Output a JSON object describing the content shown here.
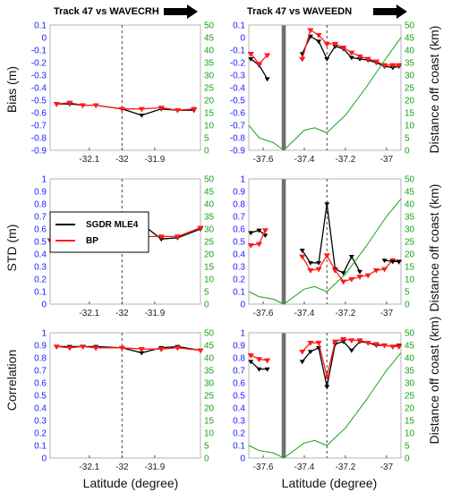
{
  "titles": {
    "left": "Track 47 vs WAVECRH",
    "right": "Track 47 vs WAVEEDN"
  },
  "xlabel": "Latitude (degree)",
  "legend": {
    "entries": [
      {
        "label": "SGDR MLE4",
        "color": "#000000"
      },
      {
        "label": "BP",
        "color": "#ff1a1a"
      }
    ],
    "placement": "top-left of middle-left panel"
  },
  "colors": {
    "sgdr": "#000000",
    "bp": "#ff1a1a",
    "distance": "#17a317",
    "left_axis": "#1a1aff",
    "gap_band": "#707070"
  },
  "chart_data": [
    {
      "type": "line",
      "panel": "bias-left",
      "ylabel": "Bias (m)",
      "xlim": [
        -32.22,
        -31.76
      ],
      "xticks": [
        "-32.1",
        "-32",
        "-31.9"
      ],
      "ylim": [
        -0.9,
        0.1
      ],
      "yticks": [
        "0.1",
        "0",
        "-0.1",
        "-0.2",
        "-0.3",
        "-0.4",
        "-0.5",
        "-0.6",
        "-0.7",
        "-0.8",
        "-0.9"
      ],
      "y2lim": [
        0,
        50
      ],
      "y2ticks": [
        "50",
        "45",
        "40",
        "35",
        "30",
        "25",
        "20",
        "15",
        "10",
        "5",
        "0"
      ],
      "vline": -32.0,
      "series": [
        {
          "name": "SGDR MLE4",
          "x": [
            -32.2,
            -32.16,
            -32.12,
            -32.08,
            -32.0,
            -31.94,
            -31.88,
            -31.83,
            -31.78
          ],
          "values": [
            -0.53,
            -0.53,
            -0.54,
            -0.54,
            -0.57,
            -0.62,
            -0.57,
            -0.58,
            -0.58
          ]
        },
        {
          "name": "BP",
          "x": [
            -32.2,
            -32.16,
            -32.12,
            -32.08,
            -32.0,
            -31.94,
            -31.88,
            -31.83,
            -31.78
          ],
          "values": [
            -0.53,
            -0.52,
            -0.54,
            -0.54,
            -0.57,
            -0.57,
            -0.56,
            -0.58,
            -0.57
          ]
        }
      ]
    },
    {
      "type": "line",
      "panel": "bias-right",
      "y2label": "Distance off coast (km)",
      "xlim": [
        -37.67,
        -36.93
      ],
      "xticks": [
        "-37.6",
        "-37.4",
        "-37.2",
        "-37"
      ],
      "ylim": [
        -0.9,
        0.1
      ],
      "yticks": [
        "0.1",
        "0",
        "-0.1",
        "-0.2",
        "-0.3",
        "-0.4",
        "-0.5",
        "-0.6",
        "-0.7",
        "-0.8",
        "-0.9"
      ],
      "y2lim": [
        0,
        50
      ],
      "y2ticks": [
        "50",
        "45",
        "40",
        "35",
        "30",
        "25",
        "20",
        "15",
        "10",
        "5",
        "0"
      ],
      "vline": -37.29,
      "gap": [
        -37.51,
        -37.49
      ],
      "series": [
        {
          "name": "SGDR MLE4",
          "x": [
            -37.66,
            -37.62,
            -37.58
          ],
          "values": [
            -0.17,
            -0.22,
            -0.33
          ]
        },
        {
          "name": "SGDR MLE4",
          "x": [
            -37.41,
            -37.37,
            -37.33,
            -37.29,
            -37.25,
            -37.21,
            -37.17,
            -37.13,
            -37.09,
            -37.05,
            -37.01,
            -36.97,
            -36.94
          ],
          "values": [
            -0.13,
            0.01,
            -0.03,
            -0.17,
            -0.07,
            -0.09,
            -0.16,
            -0.17,
            -0.18,
            -0.2,
            -0.23,
            -0.24,
            -0.23
          ]
        },
        {
          "name": "BP",
          "x": [
            -37.66,
            -37.62,
            -37.58
          ],
          "values": [
            -0.13,
            -0.21,
            -0.14
          ]
        },
        {
          "name": "BP",
          "x": [
            -37.41,
            -37.37,
            -37.33,
            -37.29,
            -37.25,
            -37.21,
            -37.17,
            -37.13,
            -37.09,
            -37.05,
            -37.01,
            -36.97,
            -36.94
          ],
          "values": [
            -0.17,
            0.06,
            0.02,
            -0.05,
            -0.05,
            -0.08,
            -0.12,
            -0.15,
            -0.17,
            -0.19,
            -0.22,
            -0.22,
            -0.22
          ]
        },
        {
          "name": "Distance off coast",
          "axis": "y2",
          "x": [
            -37.67,
            -37.62,
            -37.55,
            -37.5,
            -37.4,
            -37.35,
            -37.29,
            -37.2,
            -37.1,
            -37.0,
            -36.93
          ],
          "values": [
            10,
            5,
            3,
            0,
            8,
            9,
            7,
            14,
            25,
            37,
            45
          ]
        }
      ]
    },
    {
      "type": "line",
      "panel": "std-left",
      "ylabel": "STD (m)",
      "xlim": [
        -32.22,
        -31.76
      ],
      "xticks": [
        "-32.1",
        "-32",
        "-31.9"
      ],
      "ylim": [
        0,
        1
      ],
      "yticks": [
        "1",
        "0.9",
        "0.8",
        "0.7",
        "0.6",
        "0.5",
        "0.4",
        "0.3",
        "0.2",
        "0.1",
        "0"
      ],
      "y2lim": [
        0,
        50
      ],
      "y2ticks": [
        "50",
        "45",
        "40",
        "35",
        "30",
        "25",
        "20",
        "15",
        "10",
        "5",
        "0"
      ],
      "vline": -32.0,
      "series": [
        {
          "name": "SGDR MLE4",
          "x": [
            -32.22,
            -32.16,
            -32.12,
            -32.08,
            -32.04,
            -32.0,
            -31.94,
            -31.88,
            -31.83,
            -31.76
          ],
          "values": [
            0.51,
            0.5,
            0.5,
            0.5,
            0.5,
            0.53,
            0.64,
            0.52,
            0.53,
            0.6
          ]
        },
        {
          "name": "BP",
          "x": [
            -32.22,
            -32.16,
            -32.12,
            -32.08,
            -32.04,
            -32.0,
            -31.94,
            -31.88,
            -31.83,
            -31.76
          ],
          "values": [
            0.51,
            0.51,
            0.51,
            0.51,
            0.51,
            0.54,
            0.54,
            0.54,
            0.54,
            0.61
          ]
        }
      ]
    },
    {
      "type": "line",
      "panel": "std-right",
      "y2label": "Distance off coast (km)",
      "xlim": [
        -37.67,
        -36.93
      ],
      "xticks": [
        "-37.6",
        "-37.4",
        "-37.2",
        "-37"
      ],
      "ylim": [
        0,
        1
      ],
      "yticks": [
        "1",
        "0.9",
        "0.8",
        "0.7",
        "0.6",
        "0.5",
        "0.4",
        "0.3",
        "0.2",
        "0.1",
        "0"
      ],
      "y2lim": [
        0,
        50
      ],
      "y2ticks": [
        "50",
        "45",
        "40",
        "35",
        "30",
        "25",
        "20",
        "15",
        "10",
        "5",
        "0"
      ],
      "vline": -37.29,
      "gap": [
        -37.51,
        -37.49
      ],
      "series": [
        {
          "name": "SGDR MLE4",
          "x": [
            -37.66,
            -37.62,
            -37.59
          ],
          "values": [
            0.57,
            0.59,
            0.55
          ]
        },
        {
          "name": "SGDR MLE4",
          "x": [
            -37.41,
            -37.37,
            -37.33,
            -37.29,
            -37.25,
            -37.21,
            -37.17,
            -37.13
          ],
          "values": [
            0.43,
            0.33,
            0.33,
            0.8,
            0.28,
            0.25,
            0.38,
            0.26
          ]
        },
        {
          "name": "BP",
          "x": [
            -37.66,
            -37.62,
            -37.59
          ],
          "values": [
            0.47,
            0.48,
            0.59
          ]
        },
        {
          "name": "BP",
          "x": [
            -37.41,
            -37.37,
            -37.33,
            -37.29,
            -37.25,
            -37.21,
            -37.17,
            -37.13,
            -37.09,
            -37.05,
            -37.01,
            -36.97,
            -36.94
          ],
          "values": [
            0.38,
            0.27,
            0.28,
            0.39,
            0.27,
            0.18,
            0.2,
            0.22,
            0.23,
            0.27,
            0.28,
            0.35,
            0.34
          ]
        },
        {
          "name": "SGDR MLE4",
          "x": [
            -37.01,
            -36.97,
            -36.94
          ],
          "values": [
            0.35,
            0.34,
            0.34
          ]
        },
        {
          "name": "Distance off coast",
          "axis": "y2",
          "x": [
            -37.67,
            -37.62,
            -37.55,
            -37.5,
            -37.4,
            -37.35,
            -37.29,
            -37.2,
            -37.1,
            -37.0,
            -36.93
          ],
          "values": [
            5,
            3,
            2,
            0,
            6,
            7,
            5,
            12,
            23,
            35,
            42
          ]
        }
      ]
    },
    {
      "type": "line",
      "panel": "corr-left",
      "ylabel": "Correlation",
      "xlim": [
        -32.22,
        -31.76
      ],
      "xticks": [
        "-32.1",
        "-32",
        "-31.9"
      ],
      "ylim": [
        0,
        1
      ],
      "yticks": [
        "1",
        "0.9",
        "0.8",
        "0.7",
        "0.6",
        "0.5",
        "0.4",
        "0.3",
        "0.2",
        "0.1",
        "0"
      ],
      "y2lim": [
        0,
        50
      ],
      "y2ticks": [
        "50",
        "45",
        "40",
        "35",
        "30",
        "25",
        "20",
        "15",
        "10",
        "5",
        "0"
      ],
      "vline": -32.0,
      "series": [
        {
          "name": "SGDR MLE4",
          "x": [
            -32.2,
            -32.16,
            -32.12,
            -32.08,
            -32.0,
            -31.94,
            -31.88,
            -31.83,
            -31.76
          ],
          "values": [
            0.89,
            0.89,
            0.89,
            0.89,
            0.88,
            0.84,
            0.88,
            0.89,
            0.86
          ]
        },
        {
          "name": "BP",
          "x": [
            -32.2,
            -32.16,
            -32.12,
            -32.08,
            -32.0,
            -31.94,
            -31.88,
            -31.83,
            -31.76
          ],
          "values": [
            0.89,
            0.88,
            0.89,
            0.88,
            0.88,
            0.87,
            0.87,
            0.88,
            0.86
          ]
        }
      ]
    },
    {
      "type": "line",
      "panel": "corr-right",
      "y2label": "Distance off coast (km)",
      "xlim": [
        -37.67,
        -36.93
      ],
      "xticks": [
        "-37.6",
        "-37.4",
        "-37.2",
        "-37"
      ],
      "ylim": [
        0,
        1
      ],
      "yticks": [
        "1",
        "0.9",
        "0.8",
        "0.7",
        "0.6",
        "0.5",
        "0.4",
        "0.3",
        "0.2",
        "0.1",
        "0"
      ],
      "y2lim": [
        0,
        50
      ],
      "y2ticks": [
        "50",
        "45",
        "40",
        "35",
        "30",
        "25",
        "20",
        "15",
        "10",
        "5",
        "0"
      ],
      "vline": -37.29,
      "gap": [
        -37.51,
        -37.49
      ],
      "series": [
        {
          "name": "SGDR MLE4",
          "x": [
            -37.66,
            -37.62,
            -37.58
          ],
          "values": [
            0.77,
            0.71,
            0.71
          ]
        },
        {
          "name": "SGDR MLE4",
          "x": [
            -37.41,
            -37.37,
            -37.33,
            -37.29,
            -37.25,
            -37.21,
            -37.17,
            -37.13,
            -37.09,
            -37.05,
            -37.01,
            -36.97,
            -36.94
          ],
          "values": [
            0.77,
            0.85,
            0.88,
            0.57,
            0.91,
            0.93,
            0.86,
            0.93,
            0.92,
            0.9,
            0.9,
            0.89,
            0.9
          ]
        },
        {
          "name": "BP",
          "x": [
            -37.66,
            -37.62,
            -37.58
          ],
          "values": [
            0.82,
            0.79,
            0.78
          ]
        },
        {
          "name": "BP",
          "x": [
            -37.41,
            -37.37,
            -37.33,
            -37.29,
            -37.25,
            -37.21,
            -37.17,
            -37.13,
            -37.09,
            -37.05,
            -37.01,
            -36.97,
            -36.94
          ],
          "values": [
            0.85,
            0.92,
            0.92,
            0.65,
            0.93,
            0.95,
            0.94,
            0.94,
            0.92,
            0.91,
            0.9,
            0.89,
            0.89
          ]
        },
        {
          "name": "Distance off coast",
          "axis": "y2",
          "x": [
            -37.67,
            -37.62,
            -37.55,
            -37.5,
            -37.4,
            -37.35,
            -37.29,
            -37.2,
            -37.1,
            -37.0,
            -36.93
          ],
          "values": [
            5,
            3,
            2,
            0,
            6,
            7,
            5,
            12,
            23,
            35,
            42
          ]
        }
      ]
    }
  ]
}
